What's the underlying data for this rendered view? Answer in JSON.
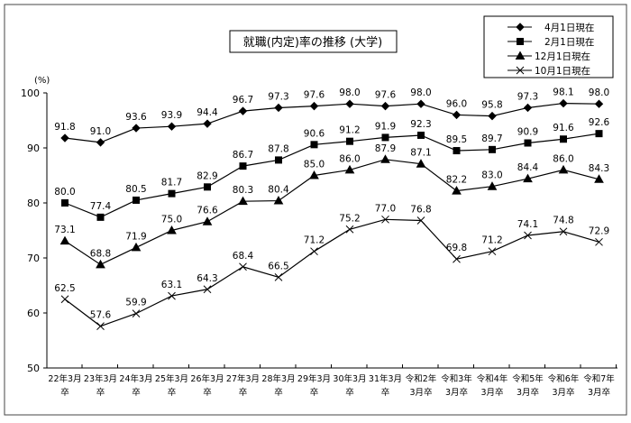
{
  "chart_data": {
    "type": "line",
    "title": "就職(内定)率の推移 (大学)",
    "ylabel": "(%)",
    "ylim": [
      50,
      100
    ],
    "yticks": [
      50,
      60,
      70,
      80,
      90,
      100
    ],
    "grid": false,
    "legend_position": "top-right",
    "categories": [
      [
        "22年3月",
        "卒"
      ],
      [
        "23年3月",
        "卒"
      ],
      [
        "24年3月",
        "卒"
      ],
      [
        "25年3月",
        "卒"
      ],
      [
        "26年3月",
        "卒"
      ],
      [
        "27年3月",
        "卒"
      ],
      [
        "28年3月",
        "卒"
      ],
      [
        "29年3月",
        "卒"
      ],
      [
        "30年3月",
        "卒"
      ],
      [
        "31年3月",
        "卒"
      ],
      [
        "令和2年",
        "3月卒"
      ],
      [
        "令和3年",
        "3月卒"
      ],
      [
        "令和4年",
        "3月卒"
      ],
      [
        "令和5年",
        "3月卒"
      ],
      [
        "令和6年",
        "3月卒"
      ],
      [
        "令和7年",
        "3月卒"
      ]
    ],
    "series": [
      {
        "name": "4月1日現在",
        "marker": "diamond",
        "values": [
          91.8,
          91.0,
          93.6,
          93.9,
          94.4,
          96.7,
          97.3,
          97.6,
          98.0,
          97.6,
          98.0,
          96.0,
          95.8,
          97.3,
          98.1,
          98.0
        ]
      },
      {
        "name": "2月1日現在",
        "marker": "square",
        "values": [
          80.0,
          77.4,
          80.5,
          81.7,
          82.9,
          86.7,
          87.8,
          90.6,
          91.2,
          91.9,
          92.3,
          89.5,
          89.7,
          90.9,
          91.6,
          92.6
        ]
      },
      {
        "name": "12月1日現在",
        "marker": "triangle",
        "values": [
          73.1,
          68.8,
          71.9,
          75.0,
          76.6,
          80.3,
          80.4,
          85.0,
          86.0,
          87.9,
          87.1,
          82.2,
          83.0,
          84.4,
          86.0,
          84.3
        ]
      },
      {
        "name": "10月1日現在",
        "marker": "x",
        "values": [
          62.5,
          57.6,
          59.9,
          63.1,
          64.3,
          68.4,
          66.5,
          71.2,
          75.2,
          77.0,
          76.8,
          69.8,
          71.2,
          74.1,
          74.8,
          72.9
        ]
      }
    ]
  }
}
